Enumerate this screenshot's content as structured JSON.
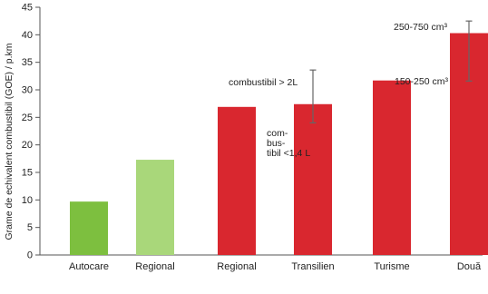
{
  "chart_data": {
    "type": "bar",
    "ylabel": "Grame de echivalent combustibil (GOE) / p.km",
    "ylim": [
      0,
      45
    ],
    "yticks": [
      0,
      5,
      10,
      15,
      20,
      25,
      30,
      35,
      40,
      45
    ],
    "grid": false,
    "categories": [
      "Autocare",
      "Regional",
      "Regional",
      "Transilien",
      "Turisme",
      "Două"
    ],
    "values": [
      9.7,
      17.3,
      26.9,
      27.4,
      31.7,
      40.3
    ],
    "colors": [
      "#7dbf3f",
      "#a9d77a",
      "#d9272f",
      "#d9272f",
      "#d9272f",
      "#d9272f"
    ],
    "error_bars": [
      {
        "category_index": 3,
        "low": 24,
        "high": 33.6
      },
      {
        "category_index": 5,
        "low": 31.6,
        "high": 42.5
      }
    ],
    "annotations": [
      {
        "text": "combustibil > 2L",
        "bar_index": 3
      },
      {
        "text": "com-",
        "bar_index": 3
      },
      {
        "text": "bus-",
        "bar_index": 3
      },
      {
        "text": "tibil <1,4 L",
        "bar_index": 3
      },
      {
        "text": "150-250 cm³",
        "bar_index": 4
      },
      {
        "text": "250-750 cm³",
        "bar_index": 5
      }
    ]
  }
}
